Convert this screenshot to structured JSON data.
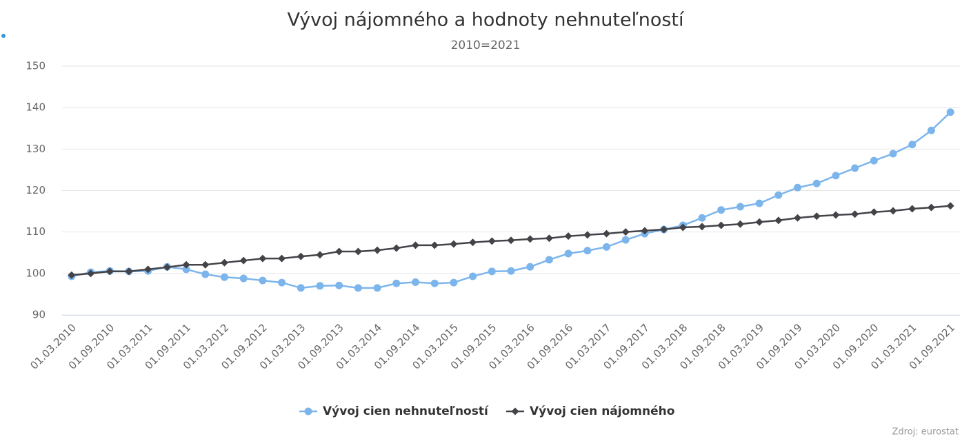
{
  "chart_data": {
    "type": "line",
    "title": "Vývoj nájomného a hodnoty nehnuteľností",
    "subtitle": "2010=2021",
    "credit": "Zdroj: eurostat",
    "categories": [
      "01.03.2010",
      null,
      "01.09.2010",
      null,
      "01.03.2011",
      null,
      "01.09.2011",
      null,
      "01.03.2012",
      null,
      "01.09.2012",
      null,
      "01.03.2013",
      null,
      "01.09.2013",
      null,
      "01.03.2014",
      null,
      "01.09.2014",
      null,
      "01.03.2015",
      null,
      "01.09.2015",
      null,
      "01.03.2016",
      null,
      "01.09.2016",
      null,
      "01.03.2017",
      null,
      "01.09.2017",
      null,
      "01.03.2018",
      null,
      "01.09.2018",
      null,
      "01.03.2019",
      null,
      "01.09.2019",
      null,
      "01.03.2020",
      null,
      "01.09.2020",
      null,
      "01.03.2021",
      null,
      "01.09.2021"
    ],
    "series": [
      {
        "name": "Vývoj cien nehnuteľností",
        "color": "#7cb5ec",
        "marker": "circle",
        "values": [
          99.3,
          100.3,
          100.6,
          100.5,
          100.6,
          101.6,
          101.0,
          99.8,
          99.1,
          98.8,
          98.3,
          97.8,
          96.5,
          97.0,
          97.1,
          96.5,
          96.5,
          97.6,
          97.9,
          97.6,
          97.8,
          99.3,
          100.5,
          100.6,
          101.6,
          103.3,
          104.8,
          105.5,
          106.4,
          108.1,
          109.6,
          110.6,
          111.6,
          113.4,
          115.3,
          116.1,
          116.9,
          118.9,
          120.7,
          121.7,
          123.6,
          125.4,
          127.2,
          128.9,
          131.1,
          134.5,
          138.9
        ]
      },
      {
        "name": "Vývoj cien nájomného",
        "color": "#434348",
        "marker": "diamond",
        "values": [
          99.6,
          100.0,
          100.5,
          100.5,
          101.0,
          101.5,
          102.1,
          102.1,
          102.6,
          103.1,
          103.6,
          103.6,
          104.1,
          104.5,
          105.3,
          105.3,
          105.6,
          106.1,
          106.8,
          106.8,
          107.1,
          107.5,
          107.8,
          108.0,
          108.3,
          108.5,
          109.0,
          109.3,
          109.6,
          110.0,
          110.3,
          110.6,
          111.1,
          111.3,
          111.6,
          111.9,
          112.4,
          112.8,
          113.4,
          113.8,
          114.1,
          114.3,
          114.8,
          115.1,
          115.6,
          115.9,
          116.3
        ]
      }
    ],
    "ylim": [
      90,
      150
    ],
    "yticks": [
      90,
      100,
      110,
      120,
      130,
      140,
      150
    ],
    "grid": true,
    "legend": "bottom"
  }
}
